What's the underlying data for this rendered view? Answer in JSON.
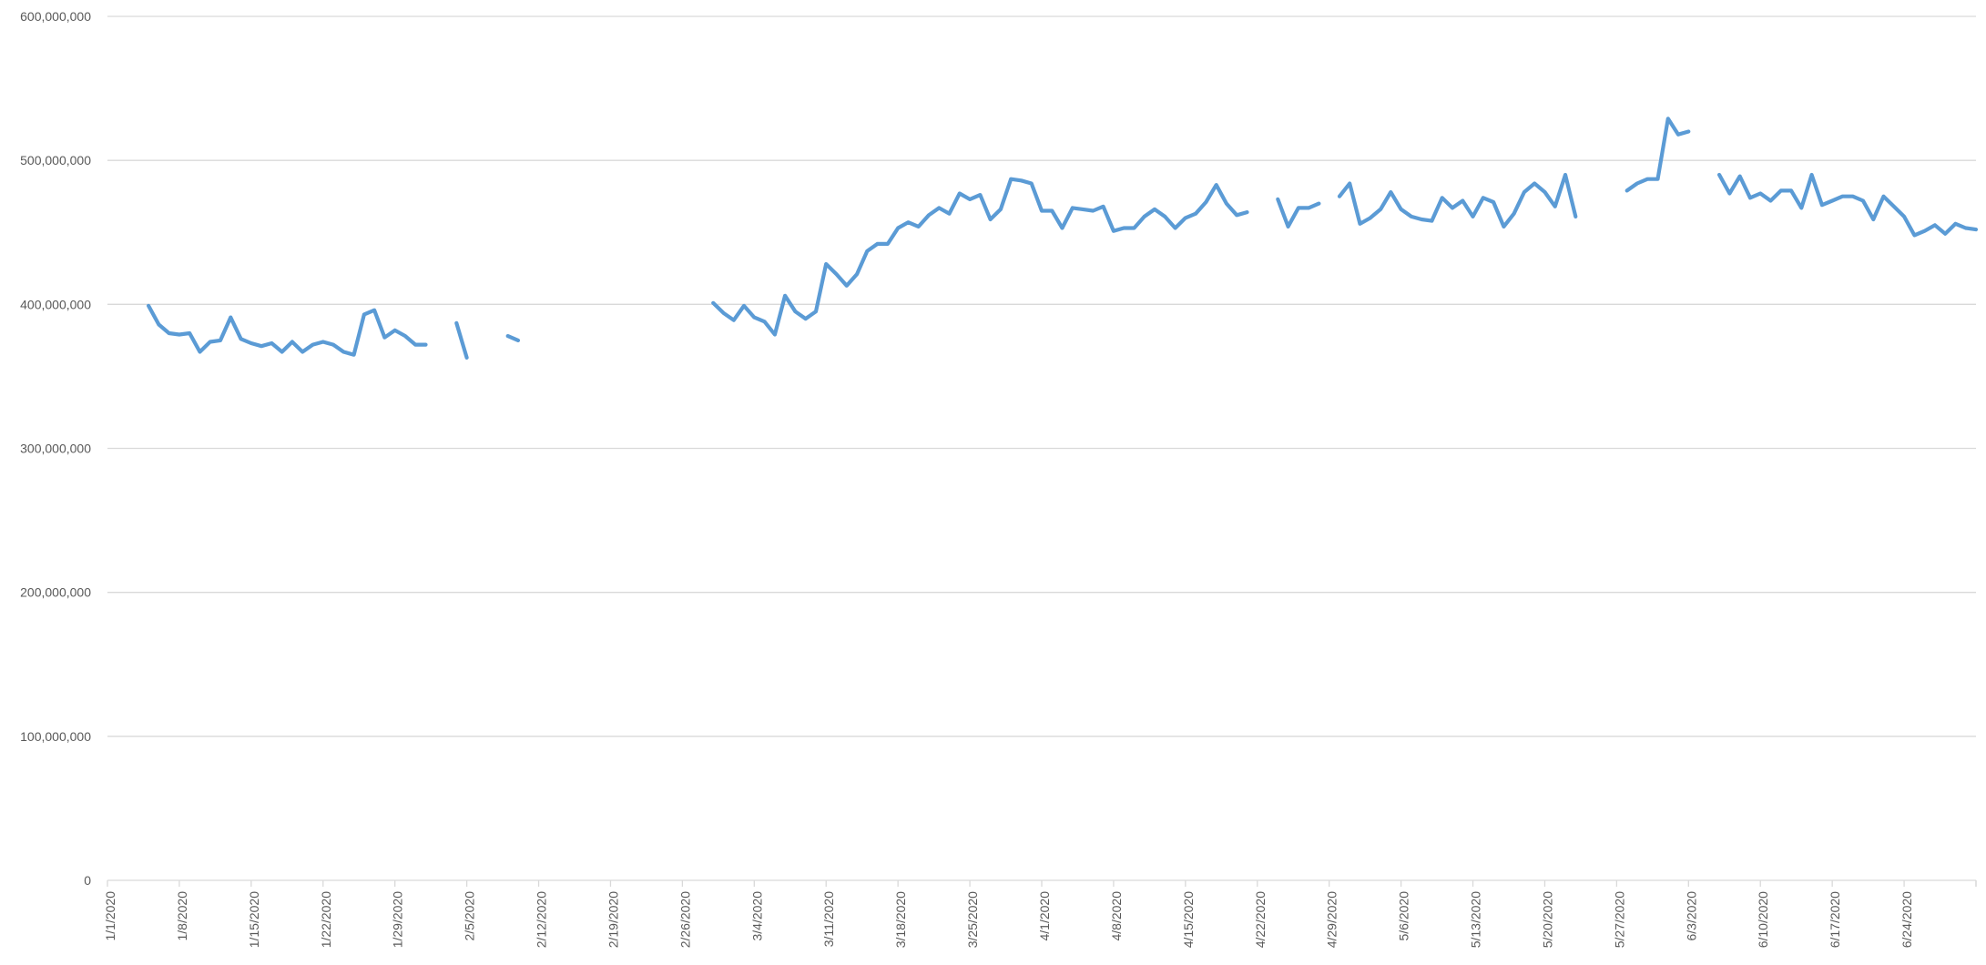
{
  "chart_data": {
    "type": "line",
    "title": "",
    "xlabel": "",
    "ylabel": "",
    "ylim": [
      0,
      600000000
    ],
    "y_ticks": [
      0,
      100000000,
      200000000,
      300000000,
      400000000,
      500000000,
      600000000
    ],
    "y_tick_labels": [
      "0",
      "100,000,000",
      "200,000,000",
      "300,000,000",
      "400,000,000",
      "500,000,000",
      "600,000,000"
    ],
    "x_start": "2020-01-01",
    "x_end": "2020-06-30",
    "x_tick_labels": [
      "1/1/2020",
      "1/8/2020",
      "1/15/2020",
      "1/22/2020",
      "1/29/2020",
      "2/5/2020",
      "2/12/2020",
      "2/19/2020",
      "2/26/2020",
      "3/4/2020",
      "3/11/2020",
      "3/18/2020",
      "3/25/2020",
      "4/1/2020",
      "4/8/2020",
      "4/15/2020",
      "4/22/2020",
      "4/29/2020",
      "5/6/2020",
      "5/13/2020",
      "5/20/2020",
      "5/27/2020",
      "6/3/2020",
      "6/10/2020",
      "6/17/2020",
      "6/24/2020"
    ],
    "grid": true,
    "legend": "none",
    "series_color": "#5b9bd5",
    "series": [
      {
        "values": [
          [
            "2020-01-05",
            399000000
          ],
          [
            "2020-01-06",
            386000000
          ],
          [
            "2020-01-07",
            380000000
          ],
          [
            "2020-01-08",
            379000000
          ],
          [
            "2020-01-09",
            380000000
          ],
          [
            "2020-01-10",
            367000000
          ],
          [
            "2020-01-11",
            374000000
          ],
          [
            "2020-01-12",
            375000000
          ],
          [
            "2020-01-13",
            391000000
          ],
          [
            "2020-01-14",
            376000000
          ],
          [
            "2020-01-15",
            373000000
          ],
          [
            "2020-01-16",
            371000000
          ],
          [
            "2020-01-17",
            373000000
          ],
          [
            "2020-01-18",
            367000000
          ],
          [
            "2020-01-19",
            374000000
          ],
          [
            "2020-01-20",
            367000000
          ],
          [
            "2020-01-21",
            372000000
          ],
          [
            "2020-01-22",
            374000000
          ],
          [
            "2020-01-23",
            372000000
          ],
          [
            "2020-01-24",
            367000000
          ],
          [
            "2020-01-25",
            365000000
          ],
          [
            "2020-01-26",
            393000000
          ],
          [
            "2020-01-27",
            396000000
          ],
          [
            "2020-01-28",
            377000000
          ],
          [
            "2020-01-29",
            382000000
          ],
          [
            "2020-01-30",
            378000000
          ],
          [
            "2020-01-31",
            372000000
          ],
          [
            "2020-02-01",
            372000000
          ],
          [
            "2020-02-02",
            null
          ],
          [
            "2020-02-03",
            null
          ],
          [
            "2020-02-04",
            387000000
          ],
          [
            "2020-02-05",
            363000000
          ],
          [
            "2020-02-06",
            null
          ],
          [
            "2020-02-07",
            null
          ],
          [
            "2020-02-08",
            null
          ],
          [
            "2020-02-09",
            378000000
          ],
          [
            "2020-02-10",
            375000000
          ],
          [
            "2020-02-11",
            null
          ],
          [
            "2020-02-29",
            401000000
          ],
          [
            "2020-03-01",
            394000000
          ],
          [
            "2020-03-02",
            389000000
          ],
          [
            "2020-03-03",
            399000000
          ],
          [
            "2020-03-04",
            391000000
          ],
          [
            "2020-03-05",
            388000000
          ],
          [
            "2020-03-06",
            379000000
          ],
          [
            "2020-03-07",
            406000000
          ],
          [
            "2020-03-08",
            395000000
          ],
          [
            "2020-03-09",
            390000000
          ],
          [
            "2020-03-10",
            395000000
          ],
          [
            "2020-03-11",
            428000000
          ],
          [
            "2020-03-12",
            421000000
          ],
          [
            "2020-03-13",
            413000000
          ],
          [
            "2020-03-14",
            421000000
          ],
          [
            "2020-03-15",
            437000000
          ],
          [
            "2020-03-16",
            442000000
          ],
          [
            "2020-03-17",
            442000000
          ],
          [
            "2020-03-18",
            453000000
          ],
          [
            "2020-03-19",
            457000000
          ],
          [
            "2020-03-20",
            454000000
          ],
          [
            "2020-03-21",
            462000000
          ],
          [
            "2020-03-22",
            467000000
          ],
          [
            "2020-03-23",
            463000000
          ],
          [
            "2020-03-24",
            477000000
          ],
          [
            "2020-03-25",
            473000000
          ],
          [
            "2020-03-26",
            476000000
          ],
          [
            "2020-03-27",
            459000000
          ],
          [
            "2020-03-28",
            466000000
          ],
          [
            "2020-03-29",
            487000000
          ],
          [
            "2020-03-30",
            486000000
          ],
          [
            "2020-03-31",
            484000000
          ],
          [
            "2020-04-01",
            465000000
          ],
          [
            "2020-04-02",
            465000000
          ],
          [
            "2020-04-03",
            453000000
          ],
          [
            "2020-04-04",
            467000000
          ],
          [
            "2020-04-05",
            466000000
          ],
          [
            "2020-04-06",
            465000000
          ],
          [
            "2020-04-07",
            468000000
          ],
          [
            "2020-04-08",
            451000000
          ],
          [
            "2020-04-09",
            453000000
          ],
          [
            "2020-04-10",
            453000000
          ],
          [
            "2020-04-11",
            461000000
          ],
          [
            "2020-04-12",
            466000000
          ],
          [
            "2020-04-13",
            461000000
          ],
          [
            "2020-04-14",
            453000000
          ],
          [
            "2020-04-15",
            460000000
          ],
          [
            "2020-04-16",
            463000000
          ],
          [
            "2020-04-17",
            471000000
          ],
          [
            "2020-04-18",
            483000000
          ],
          [
            "2020-04-19",
            470000000
          ],
          [
            "2020-04-20",
            462000000
          ],
          [
            "2020-04-21",
            464000000
          ],
          [
            "2020-04-22",
            null
          ],
          [
            "2020-04-23",
            null
          ],
          [
            "2020-04-24",
            473000000
          ],
          [
            "2020-04-25",
            454000000
          ],
          [
            "2020-04-26",
            467000000
          ],
          [
            "2020-04-27",
            467000000
          ],
          [
            "2020-04-28",
            470000000
          ],
          [
            "2020-04-29",
            null
          ],
          [
            "2020-04-30",
            475000000
          ],
          [
            "2020-05-01",
            484000000
          ],
          [
            "2020-05-02",
            456000000
          ],
          [
            "2020-05-03",
            460000000
          ],
          [
            "2020-05-04",
            466000000
          ],
          [
            "2020-05-05",
            478000000
          ],
          [
            "2020-05-06",
            466000000
          ],
          [
            "2020-05-07",
            461000000
          ],
          [
            "2020-05-08",
            459000000
          ],
          [
            "2020-05-09",
            458000000
          ],
          [
            "2020-05-10",
            474000000
          ],
          [
            "2020-05-11",
            467000000
          ],
          [
            "2020-05-12",
            472000000
          ],
          [
            "2020-05-13",
            461000000
          ],
          [
            "2020-05-14",
            474000000
          ],
          [
            "2020-05-15",
            471000000
          ],
          [
            "2020-05-16",
            454000000
          ],
          [
            "2020-05-17",
            463000000
          ],
          [
            "2020-05-18",
            478000000
          ],
          [
            "2020-05-19",
            484000000
          ],
          [
            "2020-05-20",
            478000000
          ],
          [
            "2020-05-21",
            468000000
          ],
          [
            "2020-05-22",
            490000000
          ],
          [
            "2020-05-23",
            461000000
          ],
          [
            "2020-05-24",
            null
          ],
          [
            "2020-05-25",
            null
          ],
          [
            "2020-05-26",
            null
          ],
          [
            "2020-05-27",
            null
          ],
          [
            "2020-05-28",
            479000000
          ],
          [
            "2020-05-29",
            484000000
          ],
          [
            "2020-05-30",
            487000000
          ],
          [
            "2020-05-31",
            487000000
          ],
          [
            "2020-06-01",
            529000000
          ],
          [
            "2020-06-02",
            518000000
          ],
          [
            "2020-06-03",
            520000000
          ],
          [
            "2020-06-04",
            null
          ],
          [
            "2020-06-05",
            null
          ],
          [
            "2020-06-06",
            490000000
          ],
          [
            "2020-06-07",
            477000000
          ],
          [
            "2020-06-08",
            489000000
          ],
          [
            "2020-06-09",
            474000000
          ],
          [
            "2020-06-10",
            477000000
          ],
          [
            "2020-06-11",
            472000000
          ],
          [
            "2020-06-12",
            479000000
          ],
          [
            "2020-06-13",
            479000000
          ],
          [
            "2020-06-14",
            467000000
          ],
          [
            "2020-06-15",
            490000000
          ],
          [
            "2020-06-16",
            469000000
          ],
          [
            "2020-06-17",
            472000000
          ],
          [
            "2020-06-18",
            475000000
          ],
          [
            "2020-06-19",
            475000000
          ],
          [
            "2020-06-20",
            472000000
          ],
          [
            "2020-06-21",
            459000000
          ],
          [
            "2020-06-22",
            475000000
          ],
          [
            "2020-06-23",
            468000000
          ],
          [
            "2020-06-24",
            461000000
          ],
          [
            "2020-06-25",
            448000000
          ],
          [
            "2020-06-26",
            451000000
          ],
          [
            "2020-06-27",
            455000000
          ],
          [
            "2020-06-28",
            449000000
          ],
          [
            "2020-06-29",
            456000000
          ],
          [
            "2020-06-30",
            453000000
          ],
          [
            "2020-07-01",
            452000000
          ]
        ]
      }
    ]
  }
}
